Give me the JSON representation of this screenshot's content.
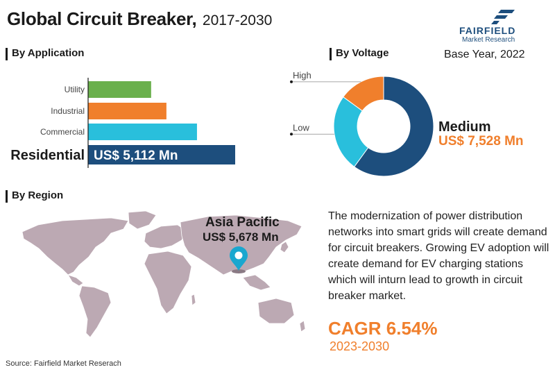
{
  "header": {
    "title": "Global Circuit Breaker,",
    "years": "2017-2030",
    "base_year": "Base Year, 2022"
  },
  "brand": {
    "name": "FAIRFIELD",
    "sub": "Market Research",
    "color": "#1d4e7d"
  },
  "sections": {
    "application": "By Application",
    "voltage": "By Voltage",
    "region": "By Region"
  },
  "chart_data": [
    {
      "type": "bar",
      "orientation": "horizontal",
      "title": "By Application",
      "categories": [
        "Utility",
        "Industrial",
        "Commercial",
        "Residential"
      ],
      "values": [
        1650,
        2050,
        2850,
        3850
      ],
      "colors": [
        "#6ab04c",
        "#f07f2c",
        "#29bfdc",
        "#1d4e7d"
      ],
      "value_label": "US$ 5,112 Mn",
      "highlight": "Residential"
    },
    {
      "type": "pie",
      "variant": "donut",
      "title": "By Voltage",
      "labels": [
        "Medium",
        "Low",
        "High"
      ],
      "values": [
        60,
        25,
        15
      ],
      "colors": [
        "#1d4e7d",
        "#29bfdc",
        "#f07f2c"
      ],
      "highlight_label": "Medium",
      "highlight_value": "US$ 7,528 Mn"
    }
  ],
  "region": {
    "highlight_name": "Asia Pacific",
    "highlight_value": "US$ 5,678 Mn",
    "map_color": "#bca9b3",
    "pin_color": "#1aa7cf"
  },
  "description": "The modernization of power distribution networks into smart grids will create demand for circuit breakers. Growing EV adoption will create demand for EV charging stations which will inturn lead to growth in circuit breaker market.",
  "cagr": {
    "label": "CAGR 6.54%",
    "period": "2023-2030"
  },
  "source": "Source: Fairfield Market Reserach"
}
